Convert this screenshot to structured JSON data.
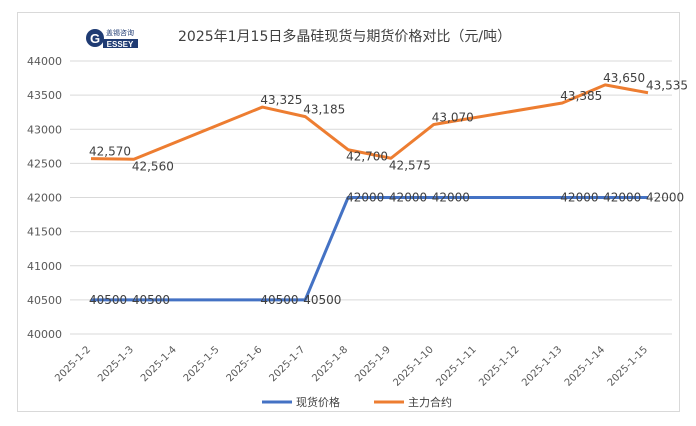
{
  "chart_data": {
    "type": "line",
    "title": "2025年1月15日多晶硅现货与期货价格对比（元/吨）",
    "logo_text": "GESSEY 盖锡咨询",
    "categories": [
      "2025-1-2",
      "2025-1-3",
      "2025-1-4",
      "2025-1-5",
      "2025-1-6",
      "2025-1-7",
      "2025-1-8",
      "2025-1-9",
      "2025-1-10",
      "2025-1-11",
      "2025-1-12",
      "2025-1-13",
      "2025-1-14",
      "2025-1-15"
    ],
    "ylim": [
      40000,
      44000
    ],
    "yticks": [
      40000,
      40500,
      41000,
      41500,
      42000,
      42500,
      43000,
      43500,
      44000
    ],
    "grid": true,
    "legend": "bottom",
    "series": [
      {
        "name": "现货价格",
        "color": "#4472c4",
        "format": "plain",
        "values": [
          40500,
          40500,
          null,
          null,
          40500,
          40500,
          42000,
          42000,
          42000,
          null,
          null,
          42000,
          42000,
          42000
        ]
      },
      {
        "name": "主力合约",
        "color": "#ed7d31",
        "format": "comma",
        "values": [
          42570,
          42560,
          null,
          null,
          43325,
          43185,
          42700,
          42575,
          43070,
          null,
          null,
          43385,
          43650,
          43535
        ]
      }
    ]
  }
}
